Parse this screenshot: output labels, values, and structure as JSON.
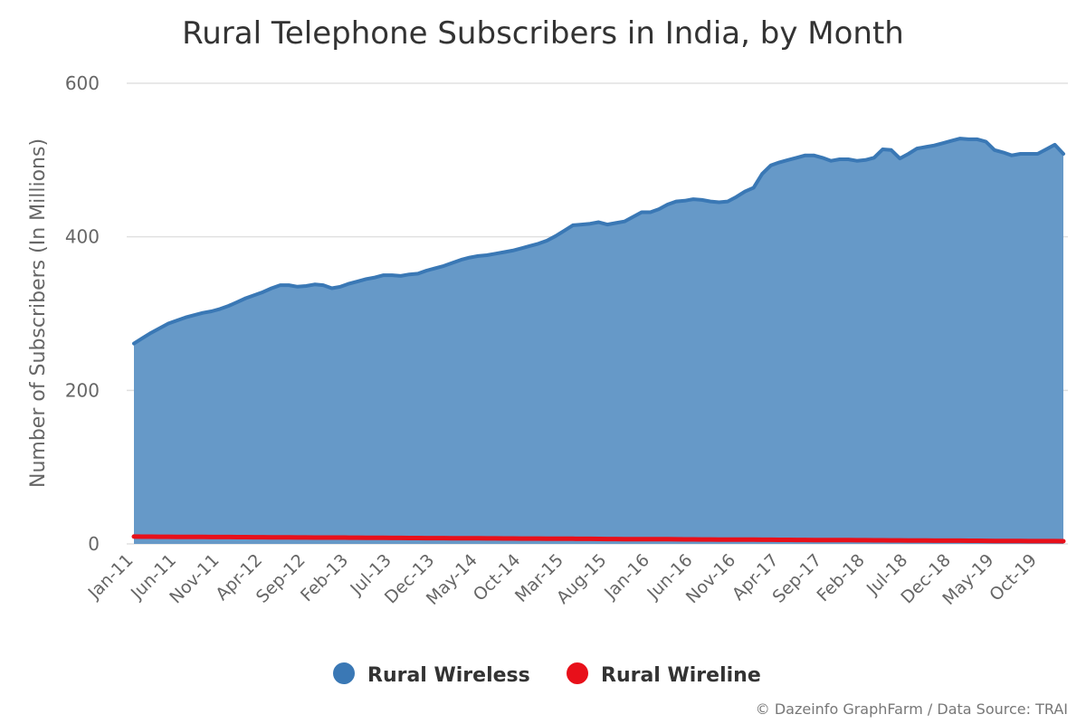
{
  "chart_data": {
    "type": "area",
    "title": "Rural Telephone Subscribers in India, by Month",
    "ylabel": "Number of Subscribers (In Millions)",
    "xlabel": "",
    "ylim": [
      0,
      600
    ],
    "yticks": [
      0,
      200,
      400,
      600
    ],
    "grid": true,
    "legend_placement": "bottom",
    "tick_labels": [
      "Jan-11",
      "Jun-11",
      "Nov-11",
      "Apr-12",
      "Sep-12",
      "Feb-13",
      "Jul-13",
      "Dec-13",
      "May-14",
      "Oct-14",
      "Mar-15",
      "Aug-15",
      "Jan-16",
      "Jun-16",
      "Nov-16",
      "Apr-17",
      "Sep-17",
      "Feb-18",
      "Jul-18",
      "Dec-18",
      "May-19",
      "Oct-19"
    ],
    "categories": [
      "Jan-11",
      "Feb-11",
      "Mar-11",
      "Apr-11",
      "May-11",
      "Jun-11",
      "Jul-11",
      "Aug-11",
      "Sep-11",
      "Oct-11",
      "Nov-11",
      "Dec-11",
      "Jan-12",
      "Feb-12",
      "Mar-12",
      "Apr-12",
      "May-12",
      "Jun-12",
      "Jul-12",
      "Aug-12",
      "Sep-12",
      "Oct-12",
      "Nov-12",
      "Dec-12",
      "Jan-13",
      "Feb-13",
      "Mar-13",
      "Apr-13",
      "May-13",
      "Jun-13",
      "Jul-13",
      "Aug-13",
      "Sep-13",
      "Oct-13",
      "Nov-13",
      "Dec-13",
      "Jan-14",
      "Feb-14",
      "Mar-14",
      "Apr-14",
      "May-14",
      "Jun-14",
      "Jul-14",
      "Aug-14",
      "Sep-14",
      "Oct-14",
      "Nov-14",
      "Dec-14",
      "Jan-15",
      "Feb-15",
      "Mar-15",
      "Apr-15",
      "May-15",
      "Jun-15",
      "Jul-15",
      "Aug-15",
      "Sep-15",
      "Oct-15",
      "Nov-15",
      "Dec-15",
      "Jan-16",
      "Feb-16",
      "Mar-16",
      "Apr-16",
      "May-16",
      "Jun-16",
      "Jul-16",
      "Aug-16",
      "Sep-16",
      "Oct-16",
      "Nov-16",
      "Dec-16",
      "Jan-17",
      "Feb-17",
      "Mar-17",
      "Apr-17",
      "May-17",
      "Jun-17",
      "Jul-17",
      "Aug-17",
      "Sep-17",
      "Oct-17",
      "Nov-17",
      "Dec-17",
      "Jan-18",
      "Feb-18",
      "Mar-18",
      "Apr-18",
      "May-18",
      "Jun-18",
      "Jul-18",
      "Aug-18",
      "Sep-18",
      "Oct-18",
      "Nov-18",
      "Dec-18",
      "Jan-19",
      "Feb-19",
      "Mar-19",
      "Apr-19",
      "May-19",
      "Jun-19",
      "Jul-19",
      "Aug-19",
      "Sep-19",
      "Oct-19",
      "Nov-19",
      "Dec-19",
      "Jan-20"
    ],
    "series": [
      {
        "name": "Rural Wireless",
        "color": "#3a78b5",
        "fill": "#6699c8",
        "values": [
          261,
          268,
          275,
          281,
          287,
          291,
          295,
          298,
          301,
          303,
          306,
          310,
          315,
          320,
          324,
          328,
          333,
          337,
          337,
          335,
          336,
          338,
          337,
          333,
          335,
          339,
          342,
          345,
          347,
          350,
          350,
          349,
          351,
          352,
          356,
          359,
          362,
          366,
          370,
          373,
          375,
          376,
          378,
          380,
          382,
          385,
          388,
          391,
          395,
          401,
          408,
          415,
          416,
          417,
          419,
          416,
          418,
          420,
          426,
          432,
          432,
          436,
          442,
          446,
          447,
          449,
          448,
          446,
          445,
          446,
          452,
          459,
          464,
          482,
          493,
          497,
          500,
          503,
          506,
          506,
          503,
          499,
          501,
          501,
          499,
          500,
          503,
          514,
          513,
          502,
          508,
          515,
          517,
          519,
          522,
          525,
          528,
          527,
          527,
          524,
          513,
          510,
          506,
          508,
          508,
          508,
          514,
          520,
          508
        ]
      },
      {
        "name": "Rural Wireline",
        "color": "#e8101a",
        "values": [
          9.5,
          9.4,
          9.4,
          9.3,
          9.3,
          9.2,
          9.2,
          9.1,
          9.1,
          9.0,
          9.0,
          8.9,
          8.8,
          8.8,
          8.7,
          8.7,
          8.6,
          8.6,
          8.5,
          8.4,
          8.4,
          8.3,
          8.3,
          8.2,
          8.2,
          8.1,
          8.1,
          8.0,
          7.9,
          7.9,
          7.8,
          7.8,
          7.7,
          7.7,
          7.6,
          7.6,
          7.5,
          7.4,
          7.4,
          7.3,
          7.3,
          7.2,
          7.2,
          7.1,
          7.1,
          7.0,
          6.9,
          6.9,
          6.8,
          6.8,
          6.7,
          6.7,
          6.6,
          6.6,
          6.5,
          6.4,
          6.4,
          6.3,
          6.3,
          6.2,
          6.2,
          6.1,
          6.1,
          6.0,
          5.9,
          5.9,
          5.8,
          5.8,
          5.7,
          5.7,
          5.6,
          5.6,
          5.5,
          5.4,
          5.4,
          5.3,
          5.3,
          5.2,
          5.2,
          5.1,
          5.1,
          5.0,
          4.9,
          4.9,
          4.8,
          4.8,
          4.7,
          4.7,
          4.6,
          4.6,
          4.5,
          4.4,
          4.4,
          4.3,
          4.3,
          4.2,
          4.2,
          4.1,
          4.1,
          4.0,
          3.9,
          3.9,
          3.8,
          3.8,
          3.7,
          3.7,
          3.6,
          3.6,
          3.5
        ]
      }
    ],
    "credits": "© Dazeinfo GraphFarm / Data Source: TRAI"
  }
}
